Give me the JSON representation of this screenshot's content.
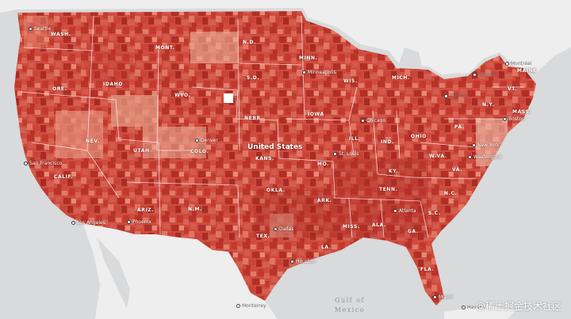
{
  "map": {
    "country_label": "United States",
    "colors": {
      "water": "#d8dadb",
      "land": "#eeeeee",
      "choropleth_dark": "#b8342a",
      "choropleth_mid": "#d6574a",
      "choropleth_light": "#f2b8a3",
      "border": "#ffffff"
    },
    "state_labels": [
      {
        "name": "state-label-wash",
        "text": "WASH."
      },
      {
        "name": "state-label-ore",
        "text": "ORE."
      },
      {
        "name": "state-label-idaho",
        "text": "IDAHO"
      },
      {
        "name": "state-label-mont",
        "text": "MONT."
      },
      {
        "name": "state-label-wyo",
        "text": "WYO."
      },
      {
        "name": "state-label-nd",
        "text": "N.D."
      },
      {
        "name": "state-label-sd",
        "text": "S.D."
      },
      {
        "name": "state-label-minn",
        "text": "MINN."
      },
      {
        "name": "state-label-wis",
        "text": "WIS."
      },
      {
        "name": "state-label-mich",
        "text": "MICH."
      },
      {
        "name": "state-label-nebr",
        "text": "NEBR."
      },
      {
        "name": "state-label-iowa",
        "text": "IOWA"
      },
      {
        "name": "state-label-ill",
        "text": "ILL."
      },
      {
        "name": "state-label-ind",
        "text": "IND."
      },
      {
        "name": "state-label-ohio",
        "text": "OHIO"
      },
      {
        "name": "state-label-nev",
        "text": "NEV."
      },
      {
        "name": "state-label-utah",
        "text": "UTAH"
      },
      {
        "name": "state-label-colo",
        "text": "COLO."
      },
      {
        "name": "state-label-kans",
        "text": "KANS."
      },
      {
        "name": "state-label-mo",
        "text": "MO."
      },
      {
        "name": "state-label-ky",
        "text": "KY."
      },
      {
        "name": "state-label-wva",
        "text": "W.VA."
      },
      {
        "name": "state-label-va",
        "text": "VA."
      },
      {
        "name": "state-label-calif",
        "text": "CALIF."
      },
      {
        "name": "state-label-ariz",
        "text": "ARIZ."
      },
      {
        "name": "state-label-nm",
        "text": "N.M."
      },
      {
        "name": "state-label-okla",
        "text": "OKLA."
      },
      {
        "name": "state-label-ark",
        "text": "ARK."
      },
      {
        "name": "state-label-tenn",
        "text": "TENN."
      },
      {
        "name": "state-label-nc",
        "text": "N.C."
      },
      {
        "name": "state-label-sc",
        "text": "S.C."
      },
      {
        "name": "state-label-tex",
        "text": "TEX."
      },
      {
        "name": "state-label-la",
        "text": "LA."
      },
      {
        "name": "state-label-miss",
        "text": "MISS."
      },
      {
        "name": "state-label-ala",
        "text": "ALA."
      },
      {
        "name": "state-label-ga",
        "text": "GA."
      },
      {
        "name": "state-label-fla",
        "text": "FLA."
      },
      {
        "name": "state-label-maine",
        "text": "MAINE"
      },
      {
        "name": "state-label-vt",
        "text": "VT."
      },
      {
        "name": "state-label-ny",
        "text": "N.Y."
      },
      {
        "name": "state-label-mass",
        "text": "MASS."
      },
      {
        "name": "state-label-pa",
        "text": "PA."
      }
    ],
    "city_labels": [
      {
        "name": "city-label-seattle",
        "text": "Seattle"
      },
      {
        "name": "city-label-denver",
        "text": "Denver"
      },
      {
        "name": "city-label-san-francisco",
        "text": "San Francisco"
      },
      {
        "name": "city-label-los-angeles",
        "text": "Los Angeles"
      },
      {
        "name": "city-label-phoenix",
        "text": "Phoenix"
      },
      {
        "name": "city-label-minneapolis",
        "text": "Minneapolis"
      },
      {
        "name": "city-label-chicago",
        "text": "Chicago"
      },
      {
        "name": "city-label-st-louis",
        "text": "St. Louis"
      },
      {
        "name": "city-label-dallas",
        "text": "Dallas"
      },
      {
        "name": "city-label-atlanta",
        "text": "Atlanta"
      },
      {
        "name": "city-label-new-york",
        "text": "New York"
      },
      {
        "name": "city-label-washington",
        "text": "Washington"
      },
      {
        "name": "city-label-houston",
        "text": "Houston"
      },
      {
        "name": "city-label-miami",
        "text": "Miami"
      },
      {
        "name": "city-label-boston",
        "text": "Boston"
      }
    ],
    "neighbor_labels": [
      {
        "name": "city-label-toronto",
        "text": "Toronto"
      },
      {
        "name": "city-label-ottawa",
        "text": "Ottawa"
      },
      {
        "name": "city-label-montreal",
        "text": "Montréal"
      },
      {
        "name": "city-label-monterrey",
        "text": "Monterrey"
      },
      {
        "name": "city-label-havana",
        "text": "Havana"
      }
    ],
    "water_label": "Gulf of Mexico",
    "watermark": "@稀土掘金技术社区"
  }
}
